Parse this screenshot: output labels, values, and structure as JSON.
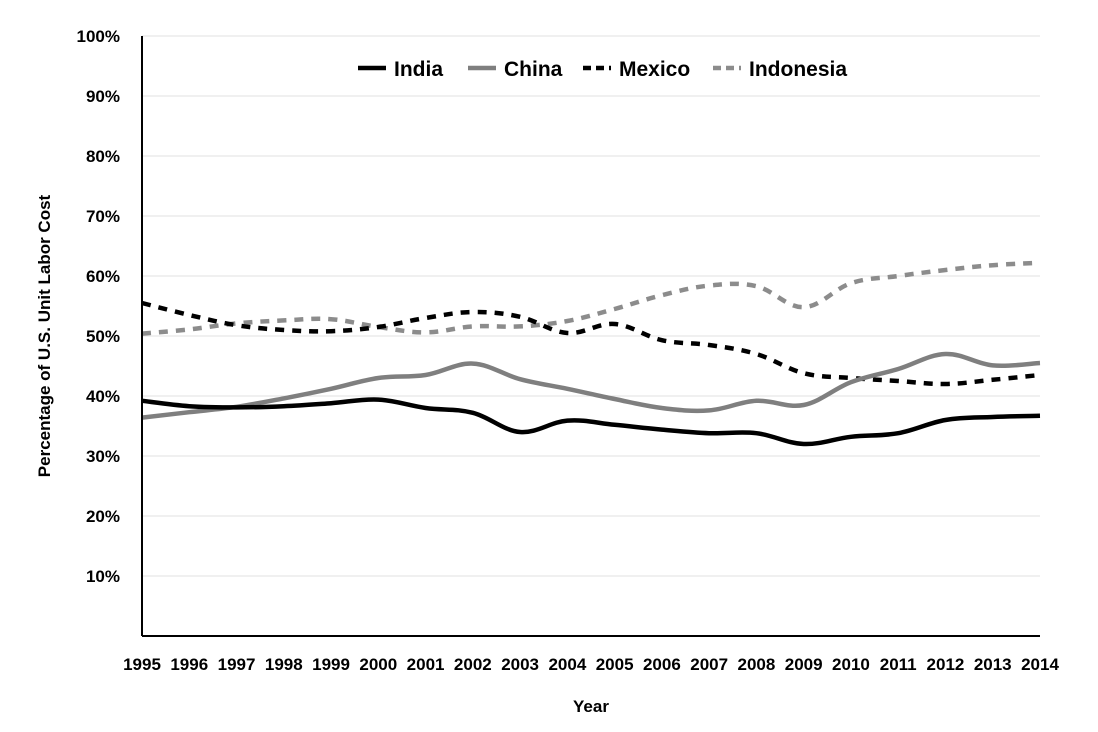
{
  "chart_data": {
    "type": "line",
    "xlabel": "Year",
    "ylabel": "Percentage of U.S. Unit Labor Cost",
    "ylim": [
      0,
      100
    ],
    "yticks": [
      10,
      20,
      30,
      40,
      50,
      60,
      70,
      80,
      90,
      100
    ],
    "ytick_labels": [
      "10%",
      "20%",
      "30%",
      "40%",
      "50%",
      "60%",
      "70%",
      "80%",
      "90%",
      "100%"
    ],
    "x": [
      "1995",
      "1996",
      "1997",
      "1998",
      "1999",
      "2000",
      "2001",
      "2002",
      "2003",
      "2004",
      "2005",
      "2006",
      "2007",
      "2008",
      "2009",
      "2010",
      "2011",
      "2012",
      "2013",
      "2014"
    ],
    "grid": true,
    "legend_position": "top",
    "series": [
      {
        "name": "India",
        "color": "#000000",
        "dash": "solid",
        "values": [
          39.2,
          38.3,
          38.1,
          38.3,
          38.8,
          39.4,
          38.0,
          37.2,
          34.0,
          35.9,
          35.2,
          34.4,
          33.8,
          33.8,
          32.0,
          33.2,
          33.8,
          36.0,
          36.5,
          36.7
        ]
      },
      {
        "name": "China",
        "color": "#7f7f7f",
        "dash": "solid",
        "values": [
          36.4,
          37.3,
          38.2,
          39.6,
          41.2,
          43.0,
          43.5,
          45.4,
          42.8,
          41.2,
          39.5,
          38.0,
          37.6,
          39.2,
          38.5,
          42.3,
          44.5,
          47.0,
          45.1,
          45.5
        ]
      },
      {
        "name": "Mexico",
        "color": "#000000",
        "dash": "dashed",
        "values": [
          55.5,
          53.5,
          51.8,
          51.0,
          50.8,
          51.5,
          53.0,
          54.0,
          53.2,
          50.5,
          52.0,
          49.3,
          48.5,
          47.0,
          43.8,
          43.0,
          42.5,
          42.0,
          42.7,
          43.5
        ]
      },
      {
        "name": "Indonesia",
        "color": "#8c8c8c",
        "dash": "dashed",
        "values": [
          50.4,
          51.1,
          52.1,
          52.6,
          52.8,
          51.5,
          50.6,
          51.6,
          51.6,
          52.5,
          54.5,
          56.8,
          58.4,
          58.3,
          54.8,
          58.8,
          60.0,
          61.0,
          61.8,
          62.2
        ]
      }
    ]
  }
}
